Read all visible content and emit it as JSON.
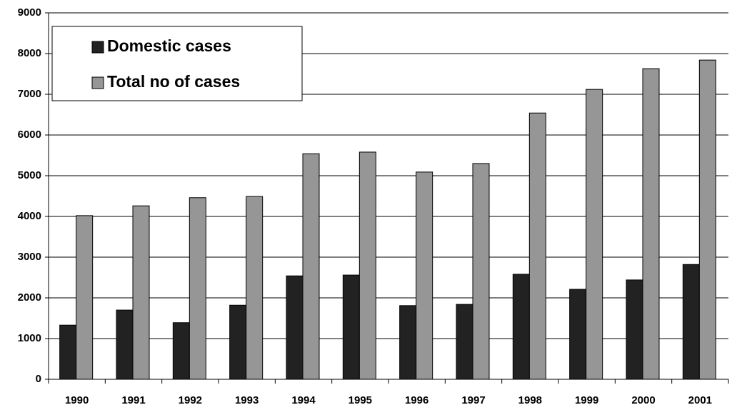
{
  "chart_data": {
    "type": "bar",
    "categories": [
      "1990",
      "1991",
      "1992",
      "1993",
      "1994",
      "1995",
      "1996",
      "1997",
      "1998",
      "1999",
      "2000",
      "2001"
    ],
    "series": [
      {
        "name": "Domestic cases",
        "color": "#222222",
        "values": [
          1330,
          1700,
          1390,
          1820,
          2540,
          2560,
          1810,
          1840,
          2580,
          2210,
          2440,
          2820
        ]
      },
      {
        "name": "Total no of cases",
        "color": "#969696",
        "values": [
          4020,
          4260,
          4460,
          4490,
          5540,
          5580,
          5090,
          5300,
          6540,
          7120,
          7630,
          7840
        ]
      }
    ],
    "ylim": [
      0,
      9000
    ],
    "yticks": [
      0,
      1000,
      2000,
      3000,
      4000,
      5000,
      6000,
      7000,
      8000,
      9000
    ],
    "grid": true,
    "legend": "upper left"
  }
}
